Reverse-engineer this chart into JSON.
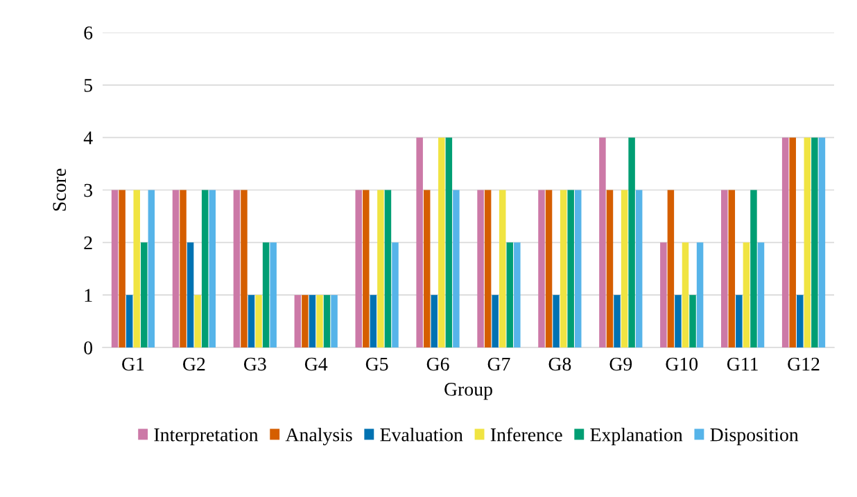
{
  "chart_data": {
    "type": "bar",
    "xlabel": "Group",
    "ylabel": "Score",
    "categories": [
      "G1",
      "G2",
      "G3",
      "G4",
      "G5",
      "G6",
      "G7",
      "G8",
      "G9",
      "G10",
      "G11",
      "G12"
    ],
    "series": [
      {
        "name": "Interpretation",
        "color": "#cc79a7",
        "values": [
          3,
          3,
          3,
          1,
          3,
          4,
          3,
          3,
          4,
          2,
          3,
          4
        ]
      },
      {
        "name": "Analysis",
        "color": "#d55e00",
        "values": [
          3,
          3,
          3,
          1,
          3,
          3,
          3,
          3,
          3,
          3,
          3,
          4
        ]
      },
      {
        "name": "Evaluation",
        "color": "#0072b2",
        "values": [
          1,
          2,
          1,
          1,
          1,
          1,
          1,
          1,
          1,
          1,
          1,
          1
        ]
      },
      {
        "name": "Inference",
        "color": "#f0e442",
        "values": [
          3,
          1,
          1,
          1,
          3,
          4,
          3,
          3,
          3,
          2,
          2,
          4
        ]
      },
      {
        "name": "Explanation",
        "color": "#009e73",
        "values": [
          2,
          3,
          2,
          1,
          3,
          4,
          2,
          3,
          4,
          1,
          3,
          4
        ]
      },
      {
        "name": "Disposition",
        "color": "#56b4e9",
        "values": [
          3,
          3,
          2,
          1,
          2,
          3,
          2,
          3,
          3,
          2,
          2,
          4
        ]
      }
    ],
    "ylim": [
      0,
      6
    ],
    "yticks": [
      0,
      1,
      2,
      3,
      4,
      5,
      6
    ],
    "grid": "y",
    "legend": "bottom"
  }
}
